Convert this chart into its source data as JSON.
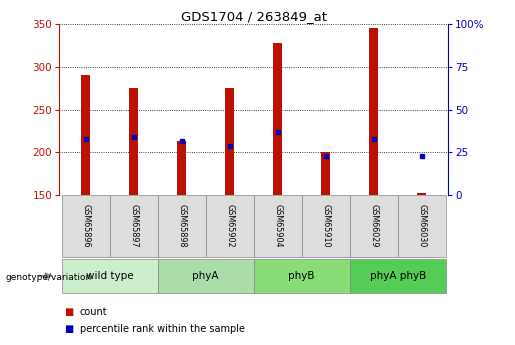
{
  "title": "GDS1704 / 263849_at",
  "samples": [
    "GSM65896",
    "GSM65897",
    "GSM65898",
    "GSM65902",
    "GSM65904",
    "GSM65910",
    "GSM66029",
    "GSM66030"
  ],
  "count_values": [
    290,
    275,
    213,
    275,
    328,
    200,
    345,
    152
  ],
  "percentile_values": [
    216,
    218,
    213,
    207,
    224,
    196,
    216,
    196
  ],
  "y_min": 150,
  "y_max": 350,
  "y_ticks_left": [
    150,
    200,
    250,
    300,
    350
  ],
  "y_ticks_right_labels": [
    "0",
    "25",
    "50",
    "75",
    "100%"
  ],
  "y_ticks_right_vals": [
    150,
    200,
    250,
    300,
    350
  ],
  "bar_color": "#BB1100",
  "percentile_color": "#0000BB",
  "bar_width": 0.18,
  "group_info": [
    {
      "label": "wild type",
      "start": 0,
      "end": 1,
      "color": "#CCEECC"
    },
    {
      "label": "phyA",
      "start": 2,
      "end": 3,
      "color": "#AADDAA"
    },
    {
      "label": "phyB",
      "start": 4,
      "end": 5,
      "color": "#88DD77"
    },
    {
      "label": "phyA phyB",
      "start": 6,
      "end": 7,
      "color": "#55CC55"
    }
  ],
  "sample_box_color": "#DDDDDD",
  "sample_box_edge": "#888888",
  "genotype_label": "genotype/variation"
}
